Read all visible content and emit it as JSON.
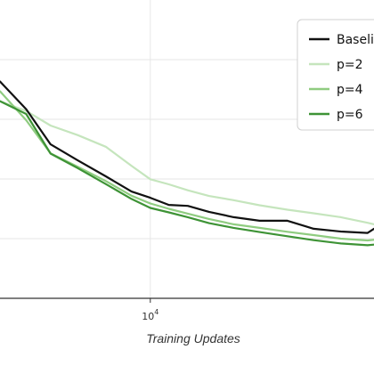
{
  "chart_data": {
    "type": "line",
    "xlabel": "Training Updates",
    "ylabel": "",
    "title": "",
    "x_scale": "log",
    "xlim": [
      3000,
      60000
    ],
    "ylim": [
      0,
      1
    ],
    "grid": true,
    "legend_position": "top-right",
    "x_ticks": [
      {
        "value": 10000,
        "base": "10",
        "exp": "4"
      }
    ],
    "series": [
      {
        "name": "Baseline",
        "color": "#111111",
        "x": [
          3000,
          3700,
          4500,
          5600,
          7000,
          8600,
          10000,
          11600,
          13500,
          16000,
          19500,
          24000,
          30000,
          37000,
          46000,
          57000,
          60000
        ],
        "y": [
          0.727,
          0.634,
          0.516,
          0.462,
          0.409,
          0.358,
          0.337,
          0.313,
          0.31,
          0.29,
          0.272,
          0.26,
          0.26,
          0.233,
          0.224,
          0.219,
          0.233
        ]
      },
      {
        "name": "p=2",
        "color": "#c5e5bd",
        "x": [
          3000,
          3700,
          4500,
          5600,
          7000,
          8600,
          10000,
          11600,
          13500,
          16000,
          19500,
          24000,
          30000,
          37000,
          46000,
          57000,
          60000
        ],
        "y": [
          0.661,
          0.628,
          0.579,
          0.547,
          0.508,
          0.444,
          0.399,
          0.382,
          0.362,
          0.343,
          0.329,
          0.312,
          0.297,
          0.285,
          0.272,
          0.253,
          0.248
        ]
      },
      {
        "name": "p=4",
        "color": "#8fcc80",
        "x": [
          3000,
          3700,
          4500,
          5600,
          7000,
          8600,
          10000,
          11600,
          13500,
          16000,
          19500,
          24000,
          30000,
          37000,
          46000,
          57000,
          60000
        ],
        "y": [
          0.694,
          0.597,
          0.486,
          0.441,
          0.393,
          0.344,
          0.318,
          0.3,
          0.284,
          0.266,
          0.248,
          0.236,
          0.223,
          0.212,
          0.2,
          0.194,
          0.196
        ]
      },
      {
        "name": "p=6",
        "color": "#3e9336",
        "x": [
          3000,
          3700,
          4500,
          5600,
          7000,
          8600,
          10000,
          11600,
          13500,
          16000,
          19500,
          24000,
          30000,
          37000,
          46000,
          57000,
          60000
        ],
        "y": [
          0.661,
          0.618,
          0.485,
          0.436,
          0.383,
          0.333,
          0.303,
          0.288,
          0.272,
          0.252,
          0.236,
          0.222,
          0.208,
          0.195,
          0.184,
          0.178,
          0.18
        ]
      }
    ]
  }
}
